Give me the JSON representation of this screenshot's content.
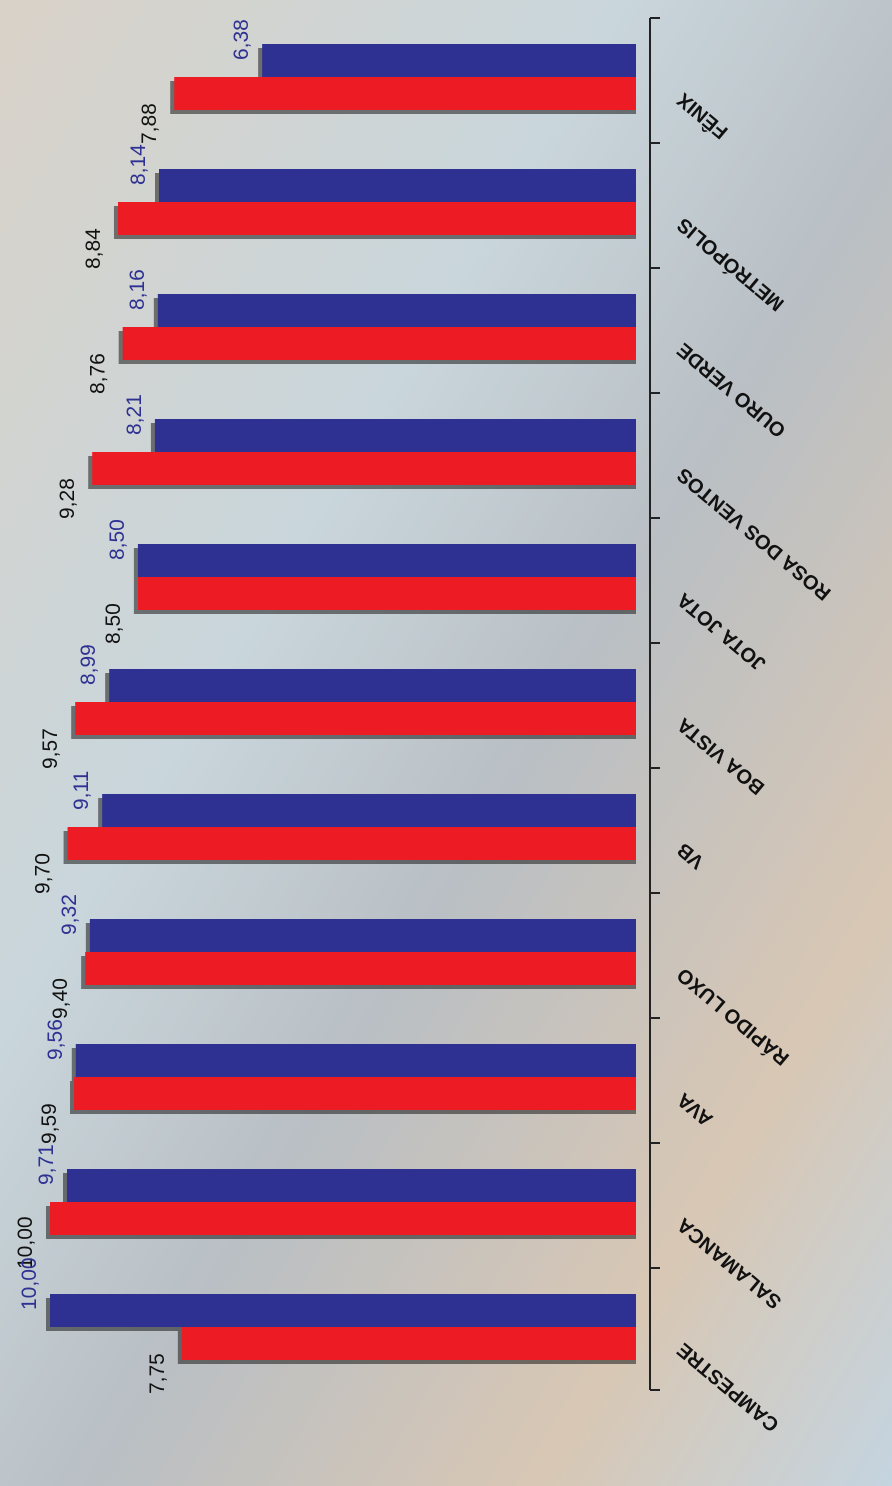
{
  "chart_data": {
    "type": "bar",
    "orientation": "horizontal",
    "categories": [
      "FÊNIX",
      "METRÓPOLIS",
      "OURO VERDE",
      "ROSA DOS VENTOS",
      "JOTA JOTA",
      "BOA VISTA",
      "VB",
      "RÁPIDO LUXO",
      "AVA",
      "SALAMANCA",
      "CAMPESTRE"
    ],
    "series": [
      {
        "color": "#2e3192",
        "values": [
          6.38,
          8.14,
          8.16,
          8.21,
          8.5,
          8.99,
          9.11,
          9.32,
          9.56,
          9.71,
          10.0
        ],
        "value_labels": [
          "6,38",
          "8,14",
          "8,16",
          "8,21",
          "8,50",
          "8,99",
          "9,11",
          "9,32",
          "9,56",
          "9,71",
          "10,00"
        ]
      },
      {
        "color": "#ed1c24",
        "values": [
          7.88,
          8.84,
          8.76,
          9.28,
          8.5,
          9.57,
          9.7,
          9.4,
          9.59,
          10.0,
          7.75
        ],
        "value_labels": [
          "7,88",
          "8,84",
          "8,76",
          "9,28",
          "8,50",
          "9,57",
          "9,70",
          "9,40",
          "9,59",
          "10,00",
          "7,75"
        ]
      }
    ],
    "ylim": [
      0,
      10
    ]
  }
}
